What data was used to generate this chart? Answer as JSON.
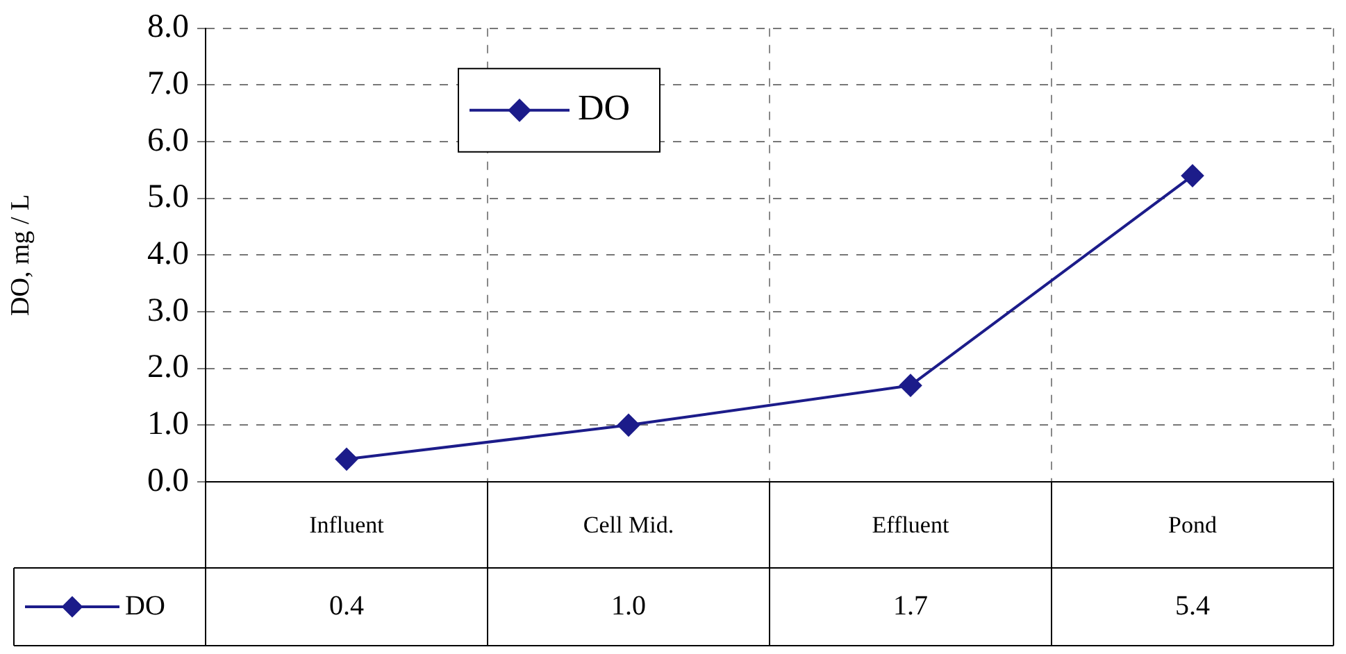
{
  "chart_data": {
    "type": "line",
    "ylabel": "DO, mg / L",
    "categories": [
      "Influent",
      "Cell Mid.",
      "Effluent",
      "Pond"
    ],
    "series": [
      {
        "name": "DO",
        "color": "#1c1c8a",
        "values": [
          0.4,
          1.0,
          1.7,
          5.4
        ],
        "value_labels": [
          "0.4",
          "1.0",
          "1.7",
          "5.4"
        ]
      }
    ],
    "ylim": [
      0,
      8
    ],
    "yticks": [
      {
        "value": 0,
        "label": "0.0"
      },
      {
        "value": 1,
        "label": "1.0"
      },
      {
        "value": 2,
        "label": "2.0"
      },
      {
        "value": 3,
        "label": "3.0"
      },
      {
        "value": 4,
        "label": "4.0"
      },
      {
        "value": 5,
        "label": "5.0"
      },
      {
        "value": 6,
        "label": "6.0"
      },
      {
        "value": 7,
        "label": "7.0"
      },
      {
        "value": 8,
        "label": "8.0"
      }
    ],
    "grid": true,
    "legend": "top left",
    "marker": "diamond",
    "line_style": "solid"
  }
}
